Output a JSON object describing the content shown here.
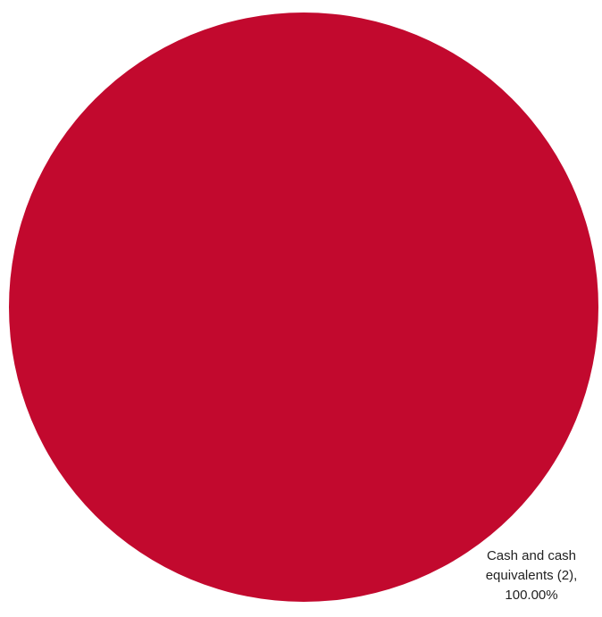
{
  "chart_data": {
    "type": "pie",
    "slices": [
      {
        "label_lines": [
          "Cash and cash",
          "equivalents (2),",
          "100.00%"
        ],
        "value": 100.0,
        "color": "#c2092e"
      }
    ],
    "legend": "none"
  }
}
